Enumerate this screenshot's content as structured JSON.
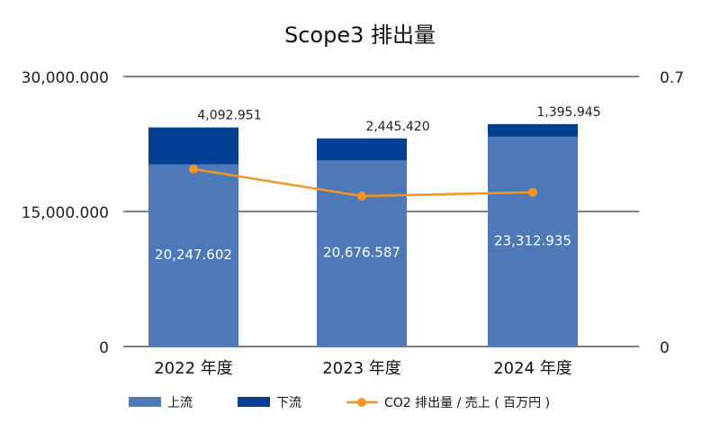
{
  "chart_data": {
    "type": "bar",
    "title": "Scope3 排出量",
    "categories": [
      "2022 年度",
      "2023 年度",
      "2024 年度"
    ],
    "series": [
      {
        "name": "上流",
        "type": "bar",
        "stack": true,
        "axis": "left",
        "values": [
          20247602,
          20676587,
          23312935
        ],
        "labels": [
          "20,247.602",
          "20,676.587",
          "23,312.935"
        ],
        "color": "#4e79b8"
      },
      {
        "name": "下流",
        "type": "bar",
        "stack": true,
        "axis": "left",
        "values": [
          4092951,
          2445420,
          1395945
        ],
        "labels": [
          "4,092.951",
          "2,445.420",
          "1,395.945"
        ],
        "color": "#023e94"
      },
      {
        "name": "CO2 排出量 / 売上 ( 百万円 )",
        "type": "line",
        "axis": "right",
        "values": [
          0.46,
          0.39,
          0.4
        ],
        "color": "#f7941d"
      }
    ],
    "left_axis": {
      "ylim": [
        0,
        30000000
      ],
      "ticks": [
        0,
        15000000,
        30000000
      ],
      "tick_labels": [
        "0",
        "15,000.000",
        "30,000.000"
      ]
    },
    "right_axis": {
      "ylim": [
        0,
        0.7
      ],
      "ticks": [
        0,
        0.7
      ],
      "tick_labels": [
        "0",
        "0.7"
      ]
    },
    "grid": true,
    "legend": "bottom"
  }
}
